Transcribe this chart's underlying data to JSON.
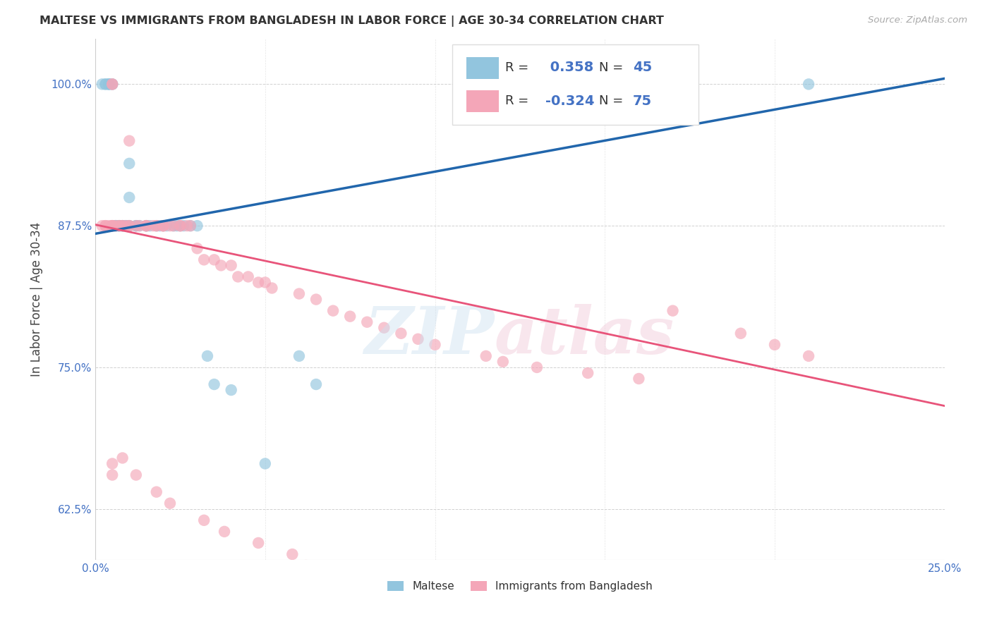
{
  "title": "MALTESE VS IMMIGRANTS FROM BANGLADESH IN LABOR FORCE | AGE 30-34 CORRELATION CHART",
  "source": "Source: ZipAtlas.com",
  "ylabel": "In Labor Force | Age 30-34",
  "xlim": [
    0.0,
    0.25
  ],
  "ylim": [
    0.58,
    1.04
  ],
  "yticks": [
    0.625,
    0.75,
    0.875,
    1.0
  ],
  "yticklabels": [
    "62.5%",
    "75.0%",
    "87.5%",
    "100.0%"
  ],
  "xtick_labels_show": [
    "0.0%",
    "25.0%"
  ],
  "blue_color": "#92c5de",
  "pink_color": "#f4a6b8",
  "line_blue_color": "#2166ac",
  "line_pink_color": "#e8547a",
  "legend_label_blue": "Maltese",
  "legend_label_pink": "Immigrants from Bangladesh",
  "blue_line_x0": 0.0,
  "blue_line_y0": 0.868,
  "blue_line_x1": 0.25,
  "blue_line_y1": 1.005,
  "pink_line_x0": 0.0,
  "pink_line_y0": 0.876,
  "pink_line_x1": 0.25,
  "pink_line_y1": 0.716,
  "blue_x": [
    0.002,
    0.003,
    0.003,
    0.004,
    0.004,
    0.004,
    0.005,
    0.005,
    0.006,
    0.006,
    0.006,
    0.007,
    0.007,
    0.007,
    0.008,
    0.008,
    0.008,
    0.009,
    0.009,
    0.01,
    0.01,
    0.01,
    0.01,
    0.012,
    0.012,
    0.013,
    0.015,
    0.015,
    0.016,
    0.018,
    0.019,
    0.02,
    0.021,
    0.023,
    0.024,
    0.025,
    0.026,
    0.028,
    0.03,
    0.033,
    0.035,
    0.04,
    0.05,
    0.06,
    0.065,
    0.21
  ],
  "blue_y": [
    1.0,
    1.0,
    1.0,
    1.0,
    1.0,
    1.0,
    1.0,
    1.0,
    0.875,
    0.875,
    0.875,
    0.875,
    0.875,
    0.875,
    0.875,
    0.875,
    0.875,
    0.875,
    0.875,
    0.93,
    0.9,
    0.875,
    0.875,
    0.875,
    0.875,
    0.875,
    0.875,
    0.875,
    0.875,
    0.875,
    0.875,
    0.875,
    0.875,
    0.875,
    0.875,
    0.875,
    0.875,
    0.875,
    0.875,
    0.76,
    0.735,
    0.73,
    0.665,
    0.76,
    0.735,
    1.0
  ],
  "pink_x": [
    0.002,
    0.003,
    0.003,
    0.004,
    0.005,
    0.005,
    0.005,
    0.005,
    0.005,
    0.005,
    0.006,
    0.007,
    0.007,
    0.008,
    0.008,
    0.009,
    0.01,
    0.01,
    0.01,
    0.012,
    0.013,
    0.015,
    0.015,
    0.015,
    0.017,
    0.018,
    0.018,
    0.02,
    0.02,
    0.02,
    0.022,
    0.023,
    0.025,
    0.025,
    0.027,
    0.028,
    0.03,
    0.032,
    0.035,
    0.037,
    0.04,
    0.042,
    0.045,
    0.048,
    0.05,
    0.052,
    0.06,
    0.065,
    0.07,
    0.075,
    0.08,
    0.085,
    0.09,
    0.095,
    0.1,
    0.115,
    0.12,
    0.13,
    0.145,
    0.16,
    0.17,
    0.19,
    0.2,
    0.21,
    0.005,
    0.005,
    0.008,
    0.012,
    0.018,
    0.022,
    0.032,
    0.038,
    0.048,
    0.058,
    0.062
  ],
  "pink_y": [
    0.875,
    0.875,
    0.875,
    0.875,
    1.0,
    1.0,
    0.875,
    0.875,
    0.875,
    0.875,
    0.875,
    0.875,
    0.875,
    0.875,
    0.875,
    0.875,
    0.95,
    0.875,
    0.875,
    0.875,
    0.875,
    0.875,
    0.875,
    0.875,
    0.875,
    0.875,
    0.875,
    0.875,
    0.875,
    0.875,
    0.875,
    0.875,
    0.875,
    0.875,
    0.875,
    0.875,
    0.855,
    0.845,
    0.845,
    0.84,
    0.84,
    0.83,
    0.83,
    0.825,
    0.825,
    0.82,
    0.815,
    0.81,
    0.8,
    0.795,
    0.79,
    0.785,
    0.78,
    0.775,
    0.77,
    0.76,
    0.755,
    0.75,
    0.745,
    0.74,
    0.8,
    0.78,
    0.77,
    0.76,
    0.665,
    0.655,
    0.67,
    0.655,
    0.64,
    0.63,
    0.615,
    0.605,
    0.595,
    0.585,
    0.575
  ]
}
